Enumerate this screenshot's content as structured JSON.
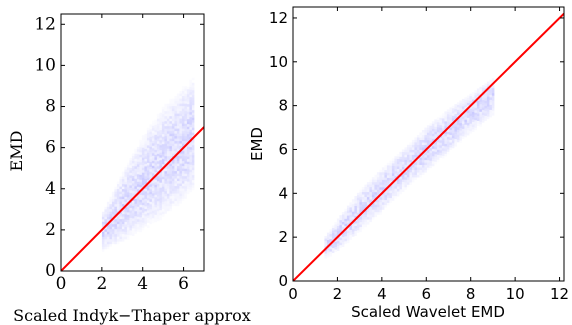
{
  "chart_data": [
    {
      "type": "heatmap",
      "xlabel": "Scaled Indyk−Thaper approx",
      "ylabel": "EMD",
      "xlim": [
        0,
        7
      ],
      "ylim": [
        0,
        12.5
      ],
      "xticks": [
        0,
        2,
        4,
        6
      ],
      "yticks": [
        0,
        2,
        4,
        6,
        8,
        10,
        12
      ],
      "reference_line": {
        "from": [
          0,
          0
        ],
        "to": [
          7,
          7
        ],
        "color": "#ff0000"
      },
      "density_color": "#3a3aff",
      "density_envelope": [
        {
          "x": 2.0,
          "y_low": 1.0,
          "y_high": 3.0
        },
        {
          "x": 3.0,
          "y_low": 1.4,
          "y_high": 5.0
        },
        {
          "x": 4.0,
          "y_low": 2.0,
          "y_high": 6.8
        },
        {
          "x": 5.0,
          "y_low": 2.6,
          "y_high": 8.2
        },
        {
          "x": 6.0,
          "y_low": 3.4,
          "y_high": 9.2
        },
        {
          "x": 6.5,
          "y_low": 4.0,
          "y_high": 9.6
        }
      ]
    },
    {
      "type": "heatmap",
      "xlabel": "Scaled Wavelet EMD",
      "ylabel": "EMD",
      "xlim": [
        0,
        12.2
      ],
      "ylim": [
        0,
        12.5
      ],
      "xticks": [
        0,
        2,
        4,
        6,
        8,
        10,
        12
      ],
      "yticks": [
        0,
        2,
        4,
        6,
        8,
        10,
        12
      ],
      "reference_line": {
        "from": [
          0,
          0
        ],
        "to": [
          12.2,
          12.2
        ],
        "color": "#ff0000"
      },
      "density_color": "#3a3aff",
      "density_envelope": [
        {
          "x": 1.3,
          "y_low": 1.0,
          "y_high": 2.0
        },
        {
          "x": 2.0,
          "y_low": 1.4,
          "y_high": 3.0
        },
        {
          "x": 3.0,
          "y_low": 2.3,
          "y_high": 4.3
        },
        {
          "x": 4.0,
          "y_low": 3.2,
          "y_high": 5.3
        },
        {
          "x": 5.0,
          "y_low": 4.2,
          "y_high": 6.2
        },
        {
          "x": 6.0,
          "y_low": 5.0,
          "y_high": 7.2
        },
        {
          "x": 7.0,
          "y_low": 5.9,
          "y_high": 8.0
        },
        {
          "x": 8.0,
          "y_low": 6.8,
          "y_high": 8.7
        },
        {
          "x": 9.0,
          "y_low": 7.6,
          "y_high": 9.4
        }
      ]
    }
  ]
}
